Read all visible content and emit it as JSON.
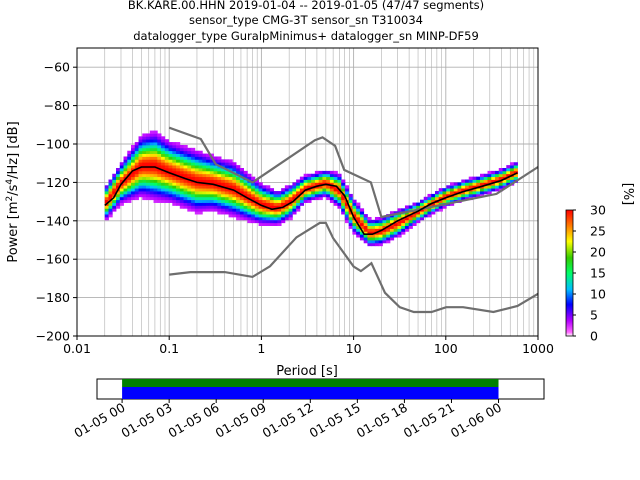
{
  "title": {
    "line1": "BK.KARE.00.HHN   2019-01-04 -- 2019-01-05  (47/47 segments)",
    "line2": "sensor_type CMG-3T sensor_sn T310034",
    "line3": "datalogger_type GuralpMinimus+ datalogger_sn MINP-DF59"
  },
  "colors": {
    "noise_models": "#6e6e6e",
    "mode_line": "#000000",
    "coverage_data": "#0000ff",
    "coverage_gaps": "#008000",
    "grid": "#b0b0b0"
  },
  "chart_data": [
    {
      "type": "heatmap",
      "title": "",
      "xlabel": "Period [s]",
      "ylabel_prefix": "Power [m",
      "ylabel_mid": "/s",
      "ylabel_suffix": "/Hz] [dB]",
      "ylabel_exp1": "2",
      "ylabel_exp2": "4",
      "xscale": "log",
      "xlim": [
        0.01,
        1000
      ],
      "ylim": [
        -200,
        -50
      ],
      "grid": true,
      "xticks": [
        {
          "value": 0.01,
          "label": "0.01"
        },
        {
          "value": 0.1,
          "label": "0.1"
        },
        {
          "value": 1,
          "label": "1"
        },
        {
          "value": 10,
          "label": "10"
        },
        {
          "value": 100,
          "label": "100"
        },
        {
          "value": 1000,
          "label": "1000"
        }
      ],
      "yticks": [
        {
          "value": -60,
          "label": "−60"
        },
        {
          "value": -80,
          "label": "−80"
        },
        {
          "value": -100,
          "label": "−100"
        },
        {
          "value": -120,
          "label": "−120"
        },
        {
          "value": -140,
          "label": "−140"
        },
        {
          "value": -160,
          "label": "−160"
        },
        {
          "value": -180,
          "label": "−180"
        },
        {
          "value": -200,
          "label": "−200"
        }
      ],
      "colorbar": {
        "label": "[%]",
        "min": 0,
        "max": 30,
        "ticks": [
          "0",
          "5",
          "10",
          "15",
          "20",
          "25",
          "30"
        ]
      },
      "mode_line": {
        "x": [
          0.02,
          0.025,
          0.03,
          0.04,
          0.05,
          0.07,
          0.1,
          0.15,
          0.2,
          0.3,
          0.5,
          0.7,
          1,
          1.3,
          1.7,
          2.2,
          3,
          4,
          5,
          6.5,
          8,
          10,
          13,
          16,
          20,
          30,
          50,
          70,
          100,
          150,
          250,
          400,
          600
        ],
        "y": [
          -132,
          -128,
          -121,
          -114,
          -112,
          -112,
          -115,
          -118,
          -120,
          -121,
          -124,
          -128,
          -132,
          -134,
          -133,
          -130,
          -124,
          -122,
          -121,
          -122,
          -127,
          -138,
          -147,
          -147,
          -145,
          -140,
          -135,
          -131,
          -128,
          -125,
          -122,
          -119,
          -115
        ]
      },
      "pdf_band": {
        "x": [
          0.02,
          0.03,
          0.05,
          0.07,
          0.1,
          0.15,
          0.2,
          0.3,
          0.5,
          0.7,
          1,
          1.5,
          2,
          3,
          5,
          7,
          10,
          15,
          20,
          30,
          50,
          70,
          100,
          150,
          250,
          400,
          600
        ],
        "y_mid": [
          -132,
          -121,
          -112,
          -112,
          -115,
          -118,
          -120,
          -121,
          -124,
          -128,
          -132,
          -134,
          -131,
          -124,
          -121,
          -125,
          -138,
          -147,
          -146,
          -142,
          -136,
          -132,
          -128,
          -125,
          -122,
          -119,
          -115
        ],
        "spread": [
          5,
          6,
          9,
          10,
          9,
          9,
          9,
          8,
          8,
          7,
          6,
          5,
          5,
          4,
          4,
          5,
          5,
          4,
          4,
          4,
          3,
          3,
          3,
          3,
          3,
          3,
          3
        ]
      },
      "nhnm": {
        "x": [
          0.1,
          0.22,
          0.32,
          0.8,
          3.8,
          4.6,
          6.3,
          7.9,
          15.4,
          20,
          354.8,
          1000
        ],
        "y": [
          -91.5,
          -97.4,
          -110.5,
          -120,
          -98,
          -96.5,
          -101,
          -113.5,
          -120,
          -138,
          -126,
          -112
        ]
      },
      "nlnm": {
        "x": [
          0.1,
          0.17,
          0.4,
          0.8,
          1.24,
          2.4,
          4.3,
          5,
          6,
          10,
          12,
          15.6,
          21.9,
          31.6,
          45,
          70,
          101,
          154,
          328,
          600,
          1000
        ],
        "y": [
          -168,
          -166.7,
          -166.7,
          -169.2,
          -163.7,
          -148.6,
          -141.1,
          -141.1,
          -149,
          -163.8,
          -166.2,
          -162.1,
          -177.5,
          -185,
          -187.5,
          -187.5,
          -185,
          -185,
          -187.5,
          -184.4,
          -178
        ]
      }
    },
    {
      "type": "bar",
      "title": "",
      "xlabel": "",
      "ylabel": "",
      "segments_label": "47/47 segments",
      "xlim": [
        -1.6,
        26.9
      ],
      "xticks": [
        {
          "value": 0,
          "label": "01-05 00"
        },
        {
          "value": 3,
          "label": "01-05 03"
        },
        {
          "value": 6,
          "label": "01-05 06"
        },
        {
          "value": 9,
          "label": "01-05 09"
        },
        {
          "value": 12,
          "label": "01-05 12"
        },
        {
          "value": 15,
          "label": "01-05 15"
        },
        {
          "value": 18,
          "label": "01-05 18"
        },
        {
          "value": 21,
          "label": "01-05 21"
        },
        {
          "value": 24,
          "label": "01-06 00"
        }
      ],
      "data_span": [
        0,
        24
      ],
      "gap_span": [
        0,
        24
      ]
    }
  ]
}
